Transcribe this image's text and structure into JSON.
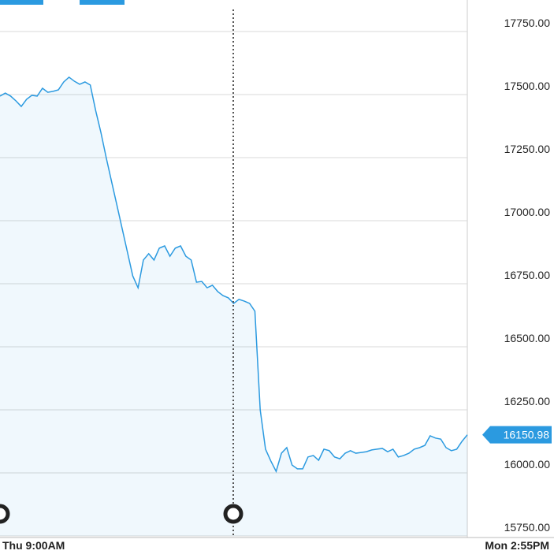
{
  "chart_data": {
    "type": "area",
    "categories": [
      "Thu 9:00AM",
      null,
      null,
      null,
      null,
      null,
      null,
      null,
      null,
      null,
      null,
      null,
      null,
      null,
      null,
      null,
      null,
      null,
      null,
      null,
      null,
      null,
      null,
      null,
      null,
      null,
      null,
      null,
      null,
      null,
      null,
      null,
      null,
      null,
      null,
      null,
      null,
      null,
      null,
      null,
      null,
      null,
      null,
      null,
      null,
      null,
      null,
      null,
      null,
      null,
      null,
      null,
      null,
      null,
      null,
      null,
      null,
      null,
      null,
      null,
      null,
      null,
      null,
      null,
      null,
      null,
      null,
      null,
      null,
      null,
      null,
      null,
      null,
      null,
      null,
      null,
      null,
      null,
      null,
      null,
      null,
      null,
      null,
      null,
      null,
      null,
      null,
      null,
      "Mon 2:55PM"
    ],
    "values": [
      17494,
      17506,
      17494,
      17475,
      17453,
      17481,
      17497,
      17494,
      17525,
      17509,
      17513,
      17519,
      17550,
      17569,
      17553,
      17541,
      17550,
      17538,
      17438,
      17350,
      17250,
      17156,
      17063,
      16969,
      16875,
      16781,
      16734,
      16844,
      16869,
      16844,
      16891,
      16900,
      16859,
      16891,
      16900,
      16859,
      16844,
      16756,
      16759,
      16734,
      16744,
      16719,
      16703,
      16694,
      16672,
      16688,
      16681,
      16672,
      16641,
      16250,
      16094,
      16047,
      16006,
      16078,
      16100,
      16031,
      16016,
      16016,
      16063,
      16069,
      16050,
      16094,
      16088,
      16063,
      16056,
      16078,
      16088,
      16078,
      16081,
      16084,
      16091,
      16094,
      16097,
      16084,
      16094,
      16063,
      16069,
      16078,
      16094,
      16100,
      16109,
      16147,
      16138,
      16134,
      16100,
      16088,
      16094,
      16125,
      16150.98
    ],
    "color": "#2b9ae0",
    "last_value": 16150.98,
    "ylim": [
      15750,
      17875
    ],
    "yticks": [
      {
        "value": 15750,
        "label": "15750.00"
      },
      {
        "value": 16000,
        "label": "16000.00"
      },
      {
        "value": 16250,
        "label": "16250.00"
      },
      {
        "value": 16500,
        "label": "16500.00"
      },
      {
        "value": 16750,
        "label": "16750.00"
      },
      {
        "value": 17000,
        "label": "17000.00"
      },
      {
        "value": 17250,
        "label": "17250.00"
      },
      {
        "value": 17500,
        "label": "17500.00"
      },
      {
        "value": 17750,
        "label": "17750.00"
      }
    ],
    "grid": true
  }
}
